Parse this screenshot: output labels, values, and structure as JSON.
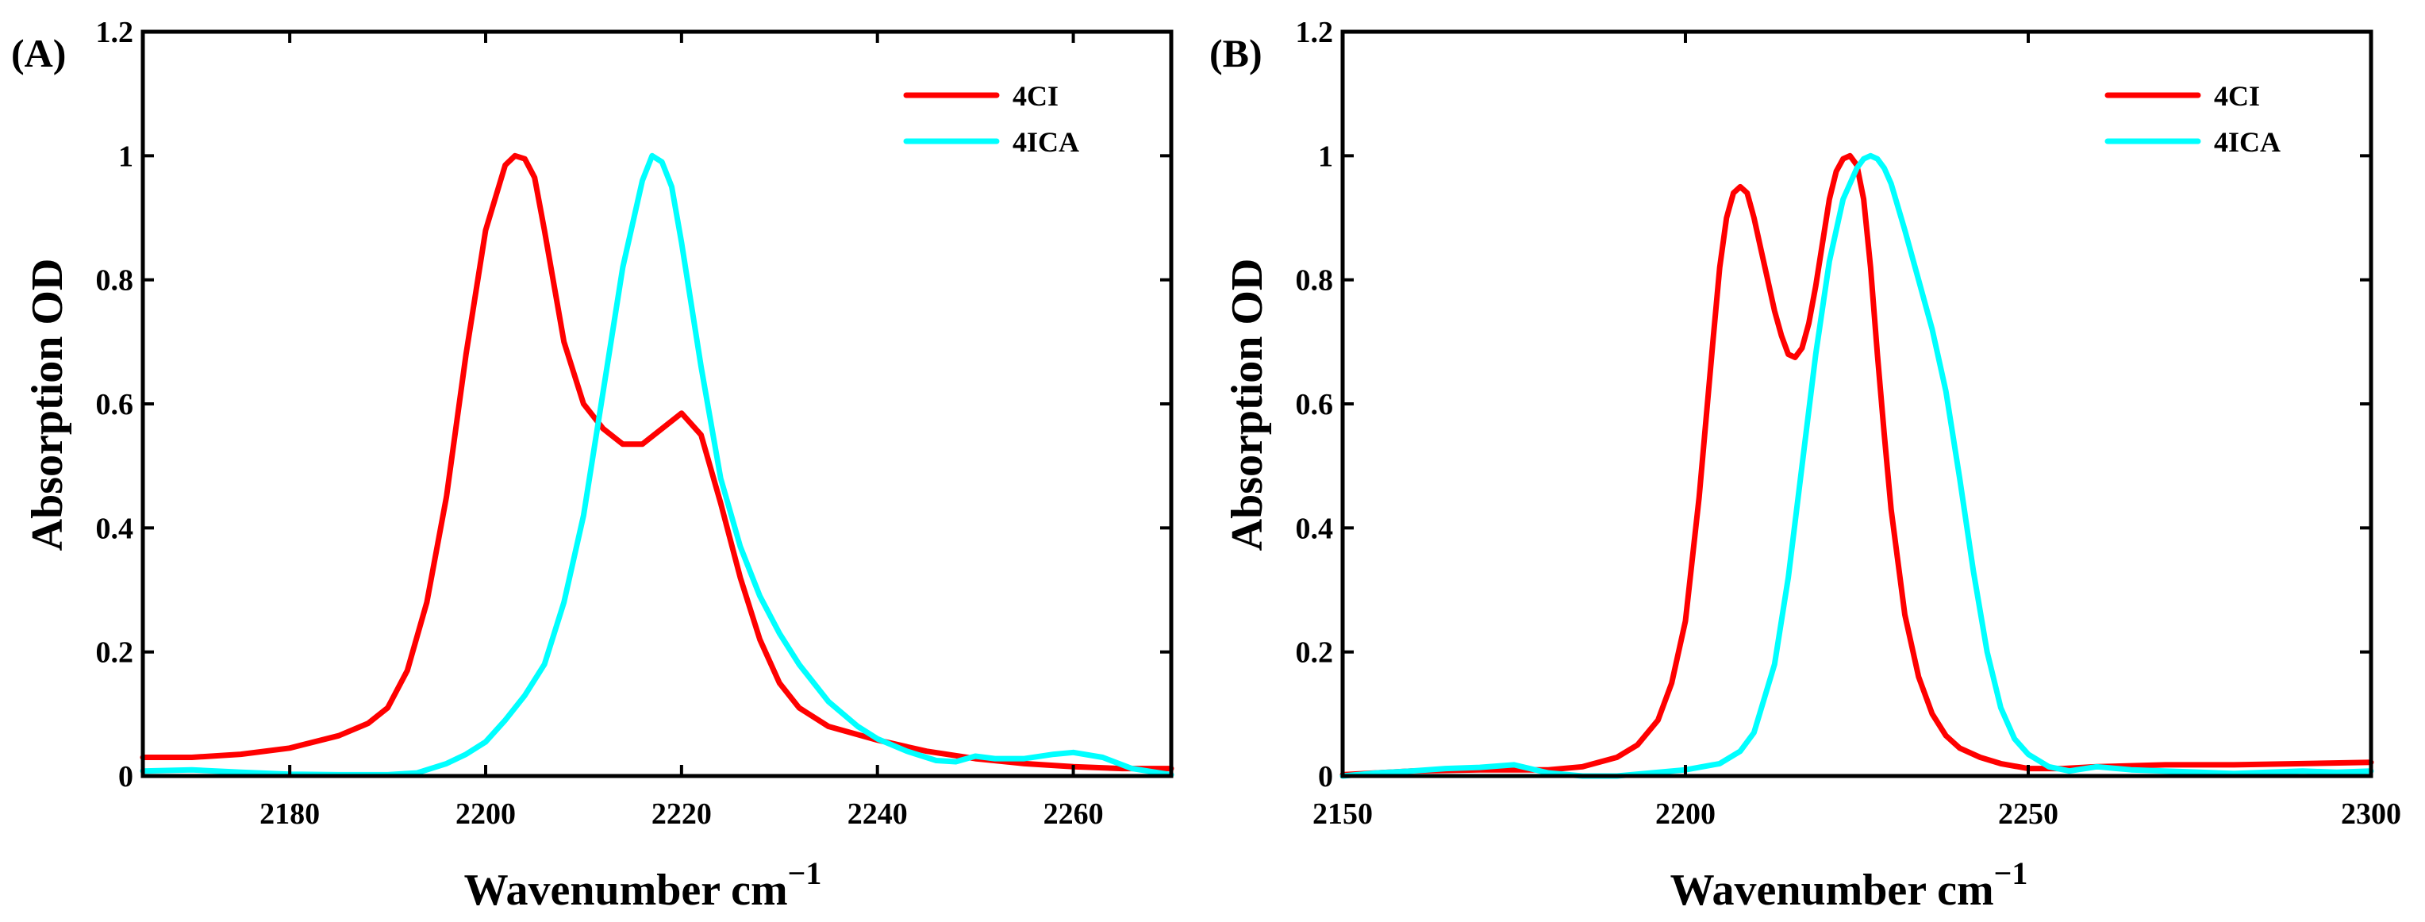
{
  "chart_data": [
    {
      "type": "line",
      "panel_label": "(A)",
      "xlabel": "Wavenumber cm",
      "xlabel_sup": "−1",
      "ylabel": "Absorption OD",
      "xlim": [
        2165,
        2270
      ],
      "ylim": [
        0,
        1.2
      ],
      "xticks": [
        2180,
        2200,
        2220,
        2240,
        2260
      ],
      "yticks": [
        0,
        0.2,
        0.4,
        0.6,
        0.8,
        1,
        1.2
      ],
      "ytick_labels": [
        "0",
        "0.2",
        "0.4",
        "0.6",
        "0.8",
        "1",
        "1.2"
      ],
      "legend_position": "top-right",
      "series": [
        {
          "name": "4CI",
          "color": "#ff0000",
          "x": [
            2165,
            2170,
            2175,
            2180,
            2185,
            2188,
            2190,
            2192,
            2194,
            2196,
            2198,
            2200,
            2202,
            2203,
            2204,
            2205,
            2206,
            2208,
            2210,
            2212,
            2214,
            2216,
            2218,
            2220,
            2222,
            2224,
            2226,
            2228,
            2230,
            2232,
            2235,
            2240,
            2245,
            2250,
            2255,
            2260,
            2265,
            2270
          ],
          "y": [
            0.03,
            0.03,
            0.035,
            0.045,
            0.065,
            0.085,
            0.11,
            0.17,
            0.28,
            0.45,
            0.68,
            0.88,
            0.985,
            1.0,
            0.995,
            0.965,
            0.88,
            0.7,
            0.6,
            0.56,
            0.535,
            0.535,
            0.56,
            0.585,
            0.55,
            0.44,
            0.32,
            0.22,
            0.15,
            0.11,
            0.08,
            0.058,
            0.04,
            0.028,
            0.02,
            0.015,
            0.012,
            0.012
          ]
        },
        {
          "name": "4ICA",
          "color": "#00ffff",
          "x": [
            2165,
            2170,
            2175,
            2180,
            2185,
            2190,
            2193,
            2196,
            2198,
            2200,
            2202,
            2204,
            2206,
            2208,
            2210,
            2212,
            2214,
            2216,
            2217,
            2218,
            2219,
            2220,
            2222,
            2224,
            2226,
            2228,
            2230,
            2232,
            2235,
            2238,
            2240,
            2243,
            2246,
            2248,
            2250,
            2252,
            2255,
            2258,
            2260,
            2263,
            2266,
            2270
          ],
          "y": [
            0.008,
            0.01,
            0.006,
            0.003,
            0.002,
            0.002,
            0.005,
            0.02,
            0.035,
            0.055,
            0.09,
            0.13,
            0.18,
            0.28,
            0.42,
            0.62,
            0.82,
            0.96,
            1.0,
            0.99,
            0.95,
            0.86,
            0.66,
            0.48,
            0.37,
            0.29,
            0.23,
            0.18,
            0.12,
            0.08,
            0.06,
            0.04,
            0.025,
            0.023,
            0.032,
            0.028,
            0.028,
            0.035,
            0.038,
            0.03,
            0.012,
            0.002
          ]
        }
      ]
    },
    {
      "type": "line",
      "panel_label": "(B)",
      "xlabel": "Wavenumber cm",
      "xlabel_sup": "−1",
      "ylabel": "Absorption OD",
      "xlim": [
        2150,
        2300
      ],
      "ylim": [
        0,
        1.2
      ],
      "xticks": [
        2150,
        2200,
        2250,
        2300
      ],
      "yticks": [
        0,
        0.2,
        0.4,
        0.6,
        0.8,
        1,
        1.2
      ],
      "ytick_labels": [
        "0",
        "0.2",
        "0.4",
        "0.6",
        "0.8",
        "1",
        "1.2"
      ],
      "legend_position": "top-right",
      "series": [
        {
          "name": "4CI",
          "color": "#ff0000",
          "x": [
            2150,
            2160,
            2170,
            2180,
            2185,
            2190,
            2193,
            2196,
            2198,
            2200,
            2202,
            2204,
            2205,
            2206,
            2207,
            2208,
            2209,
            2210,
            2211,
            2212,
            2213,
            2214,
            2215,
            2216,
            2217,
            2218,
            2219,
            2220,
            2221,
            2222,
            2223,
            2224,
            2225,
            2226,
            2227,
            2228,
            2229,
            2230,
            2232,
            2234,
            2236,
            2238,
            2240,
            2243,
            2246,
            2250,
            2255,
            2260,
            2270,
            2280,
            2290,
            2300
          ],
          "y": [
            0.002,
            0.008,
            0.01,
            0.01,
            0.015,
            0.03,
            0.05,
            0.09,
            0.15,
            0.25,
            0.45,
            0.7,
            0.82,
            0.9,
            0.94,
            0.95,
            0.94,
            0.9,
            0.85,
            0.8,
            0.75,
            0.71,
            0.68,
            0.675,
            0.69,
            0.73,
            0.79,
            0.86,
            0.93,
            0.975,
            0.995,
            1.0,
            0.985,
            0.93,
            0.82,
            0.68,
            0.55,
            0.43,
            0.26,
            0.16,
            0.1,
            0.065,
            0.045,
            0.03,
            0.02,
            0.012,
            0.012,
            0.015,
            0.018,
            0.018,
            0.02,
            0.022
          ]
        },
        {
          "name": "4ICA",
          "color": "#00ffff",
          "x": [
            2150,
            2155,
            2160,
            2165,
            2170,
            2175,
            2180,
            2185,
            2190,
            2195,
            2200,
            2205,
            2208,
            2210,
            2213,
            2215,
            2217,
            2219,
            2221,
            2223,
            2225,
            2226,
            2227,
            2228,
            2229,
            2230,
            2232,
            2234,
            2236,
            2238,
            2240,
            2242,
            2244,
            2246,
            2248,
            2250,
            2253,
            2256,
            2260,
            2265,
            2270,
            2275,
            2280,
            2285,
            2290,
            2295,
            2300
          ],
          "y": [
            0.0,
            0.005,
            0.008,
            0.012,
            0.014,
            0.018,
            0.005,
            0.0,
            0.0,
            0.005,
            0.01,
            0.02,
            0.04,
            0.07,
            0.18,
            0.32,
            0.5,
            0.68,
            0.83,
            0.93,
            0.98,
            0.995,
            1.0,
            0.995,
            0.98,
            0.955,
            0.88,
            0.8,
            0.72,
            0.62,
            0.48,
            0.33,
            0.2,
            0.11,
            0.06,
            0.035,
            0.015,
            0.008,
            0.015,
            0.01,
            0.008,
            0.006,
            0.004,
            0.006,
            0.008,
            0.006,
            0.008
          ]
        }
      ]
    }
  ]
}
